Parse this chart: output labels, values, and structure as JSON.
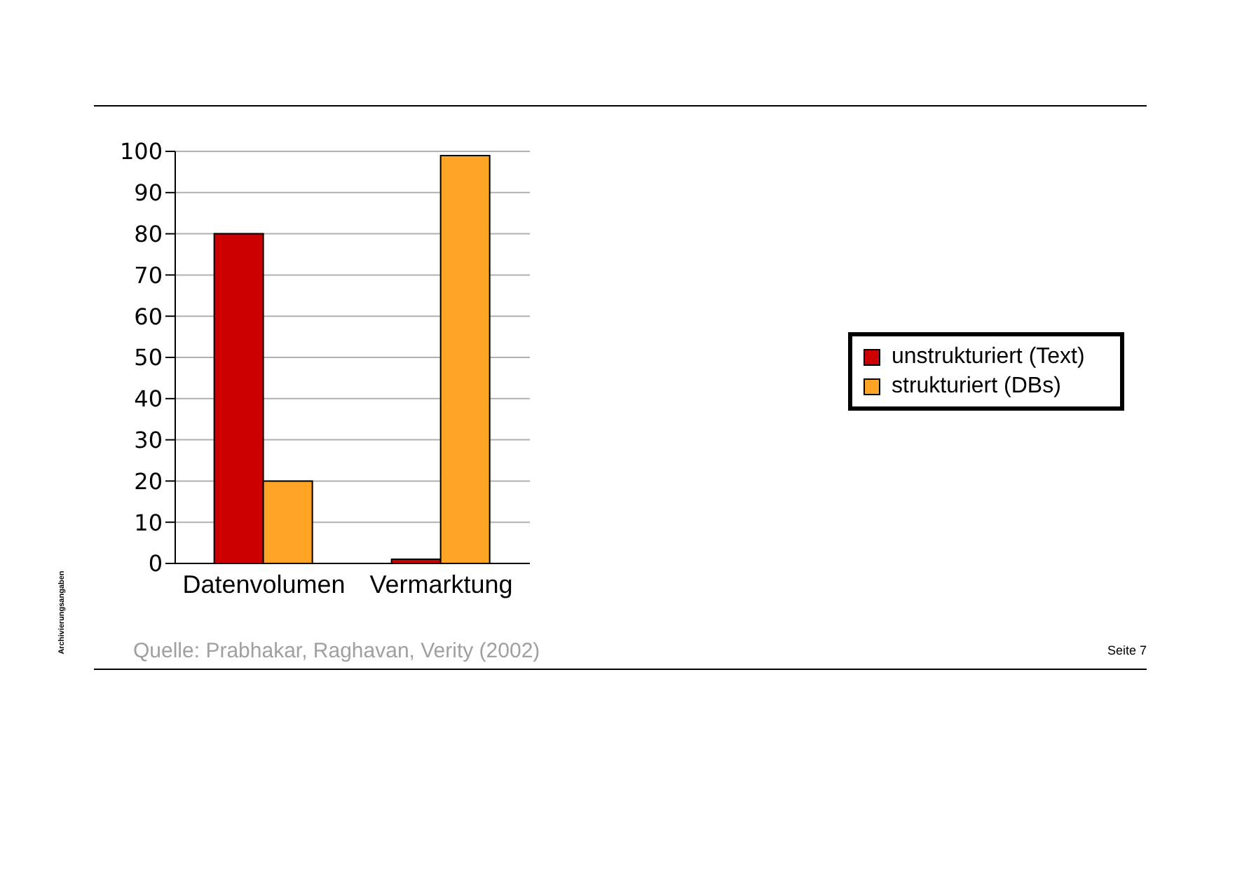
{
  "chart_data": {
    "type": "bar",
    "categories": [
      "Datenvolumen",
      "Vermarktung"
    ],
    "series": [
      {
        "name": "unstrukturiert (Text)",
        "color": "#cc0000",
        "values": [
          80,
          1
        ]
      },
      {
        "name": "strukturiert (DBs)",
        "color": "#ffa424",
        "values": [
          20,
          99
        ]
      }
    ],
    "ylim": [
      0,
      100
    ],
    "yticks": [
      0,
      10,
      20,
      30,
      40,
      50,
      60,
      70,
      80,
      90,
      100
    ],
    "grid": "y",
    "legend": "right",
    "annotations": [
      "Quelle: Prabhakar, Raghavan, Verity (2002)",
      "Seite 7",
      "Archivierungsangaben"
    ]
  }
}
